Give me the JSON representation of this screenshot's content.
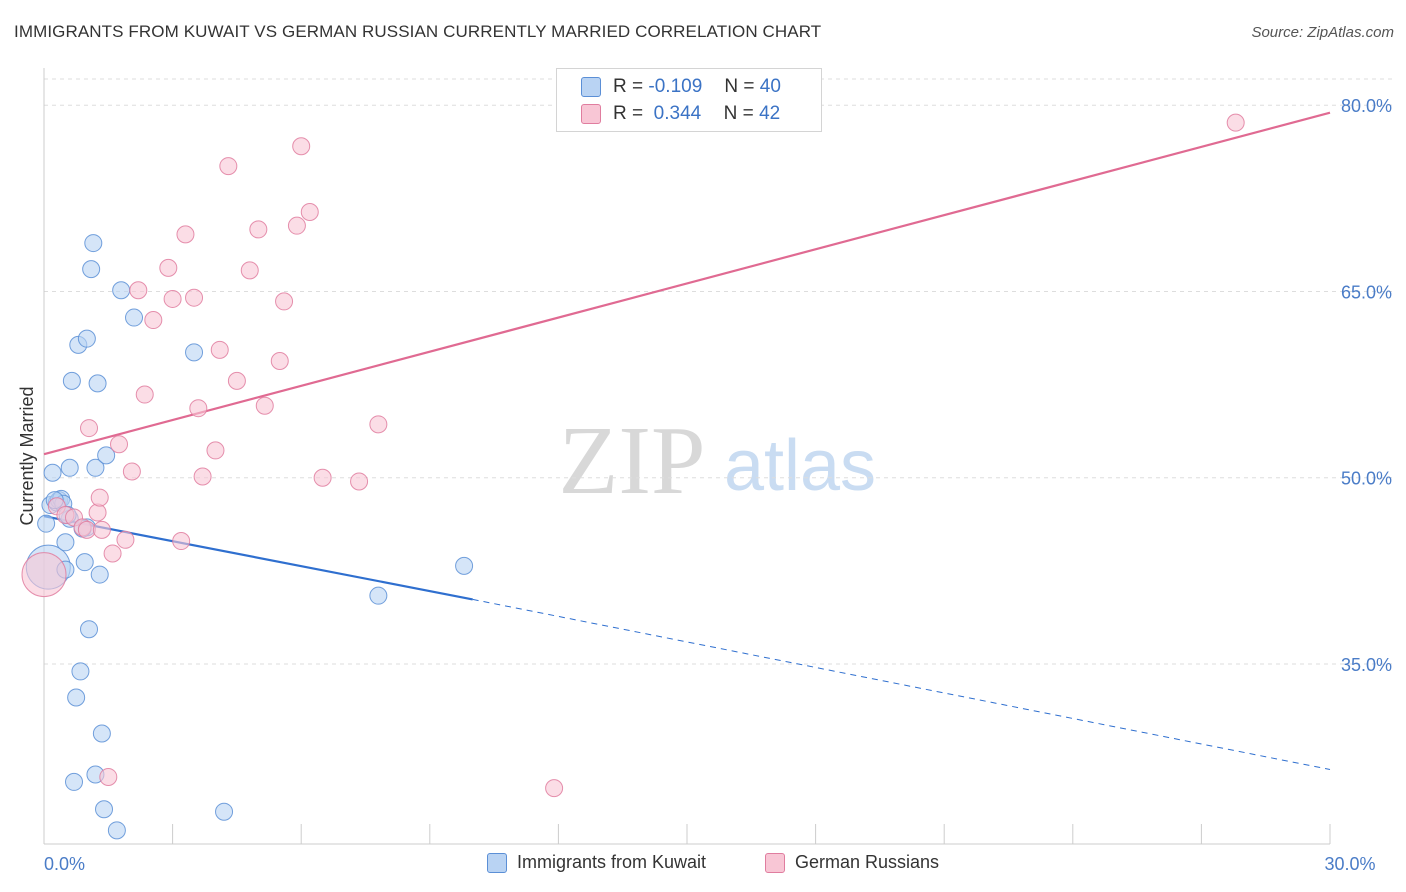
{
  "header": {
    "title": "IMMIGRANTS FROM KUWAIT VS GERMAN RUSSIAN CURRENTLY MARRIED CORRELATION CHART",
    "source": "Source: ZipAtlas.com"
  },
  "legend": {
    "series1": {
      "r_label": "R =",
      "r_value": "-0.109",
      "n_label": "N =",
      "n_value": "40"
    },
    "series2": {
      "r_label": "R =",
      "r_value": "0.344",
      "n_label": "N =",
      "n_value": "42"
    }
  },
  "watermark": {
    "zip": "ZIP",
    "atlas": "atlas"
  },
  "colors": {
    "blue_fill": "#b9d3f3",
    "blue_stroke": "#5b8fd6",
    "blue_line": "#2f6fcf",
    "pink_fill": "#f8c6d5",
    "pink_stroke": "#e07d9f",
    "pink_line": "#e06a92",
    "tick_text": "#4a7cc7",
    "grid": "#dddddd"
  },
  "chart_data": {
    "type": "scatter",
    "title": "IMMIGRANTS FROM KUWAIT VS GERMAN RUSSIAN CURRENTLY MARRIED CORRELATION CHART",
    "xlabel": "",
    "ylabel": "Currently Married",
    "xlim": [
      0,
      30
    ],
    "ylim": [
      20.5,
      83
    ],
    "x_tick_labels": [
      "0.0%",
      "30.0%"
    ],
    "y_ticks": [
      35,
      50,
      65,
      80
    ],
    "y_tick_labels": [
      "35.0%",
      "50.0%",
      "65.0%",
      "80.0%"
    ],
    "grid": true,
    "legend_position": "top-center",
    "series": [
      {
        "name": "Immigrants from Kuwait",
        "color": "blue",
        "points": [
          [
            0.05,
            46.3
          ],
          [
            0.1,
            42.8
          ],
          [
            0.15,
            47.8
          ],
          [
            0.2,
            50.4
          ],
          [
            0.3,
            48.0
          ],
          [
            0.35,
            48.2
          ],
          [
            0.4,
            48.3
          ],
          [
            0.45,
            47.9
          ],
          [
            0.5,
            44.8
          ],
          [
            0.5,
            42.6
          ],
          [
            0.6,
            46.7
          ],
          [
            0.6,
            50.8
          ],
          [
            0.65,
            57.8
          ],
          [
            0.7,
            25.5
          ],
          [
            0.75,
            32.3
          ],
          [
            0.8,
            60.7
          ],
          [
            0.85,
            34.4
          ],
          [
            0.95,
            43.2
          ],
          [
            1.0,
            61.2
          ],
          [
            1.0,
            46.0
          ],
          [
            1.05,
            37.8
          ],
          [
            1.1,
            66.8
          ],
          [
            1.15,
            68.9
          ],
          [
            1.2,
            26.1
          ],
          [
            1.2,
            50.8
          ],
          [
            1.25,
            57.6
          ],
          [
            1.3,
            42.2
          ],
          [
            1.35,
            29.4
          ],
          [
            1.4,
            23.3
          ],
          [
            1.45,
            51.8
          ],
          [
            1.7,
            21.6
          ],
          [
            1.8,
            65.1
          ],
          [
            2.1,
            62.9
          ],
          [
            3.5,
            60.1
          ],
          [
            4.2,
            23.1
          ],
          [
            7.8,
            40.5
          ],
          [
            9.8,
            42.9
          ],
          [
            0.25,
            48.2
          ],
          [
            0.55,
            47.0
          ],
          [
            0.9,
            45.9
          ]
        ]
      },
      {
        "name": "German Russians",
        "color": "pink",
        "points": [
          [
            0.0,
            42.2
          ],
          [
            0.3,
            47.7
          ],
          [
            0.5,
            47.0
          ],
          [
            0.7,
            46.8
          ],
          [
            0.9,
            46.0
          ],
          [
            1.0,
            45.8
          ],
          [
            1.05,
            54.0
          ],
          [
            1.25,
            47.2
          ],
          [
            1.3,
            48.4
          ],
          [
            1.35,
            45.8
          ],
          [
            1.5,
            25.9
          ],
          [
            1.6,
            43.9
          ],
          [
            1.75,
            52.7
          ],
          [
            1.9,
            45.0
          ],
          [
            2.05,
            50.5
          ],
          [
            2.2,
            65.1
          ],
          [
            2.35,
            56.7
          ],
          [
            2.55,
            62.7
          ],
          [
            2.9,
            66.9
          ],
          [
            3.0,
            64.4
          ],
          [
            3.2,
            44.9
          ],
          [
            3.3,
            69.6
          ],
          [
            3.5,
            64.5
          ],
          [
            3.6,
            55.6
          ],
          [
            3.7,
            50.1
          ],
          [
            4.0,
            52.2
          ],
          [
            4.1,
            60.3
          ],
          [
            4.3,
            75.1
          ],
          [
            4.5,
            57.8
          ],
          [
            4.8,
            66.7
          ],
          [
            5.0,
            70.0
          ],
          [
            5.15,
            55.8
          ],
          [
            5.5,
            59.4
          ],
          [
            5.6,
            64.2
          ],
          [
            5.9,
            70.3
          ],
          [
            6.0,
            76.7
          ],
          [
            6.2,
            71.4
          ],
          [
            6.5,
            50.0
          ],
          [
            7.35,
            49.7
          ],
          [
            7.8,
            54.3
          ],
          [
            11.9,
            25.0
          ],
          [
            27.8,
            78.6
          ]
        ]
      }
    ],
    "trendlines": [
      {
        "series": "Immigrants from Kuwait",
        "solid_from": [
          0,
          46.9
        ],
        "solid_to": [
          10,
          40.2
        ],
        "dashed_to": [
          30,
          26.5
        ]
      },
      {
        "series": "German Russians",
        "from": [
          0,
          51.9
        ],
        "to": [
          30,
          79.4
        ]
      }
    ]
  }
}
